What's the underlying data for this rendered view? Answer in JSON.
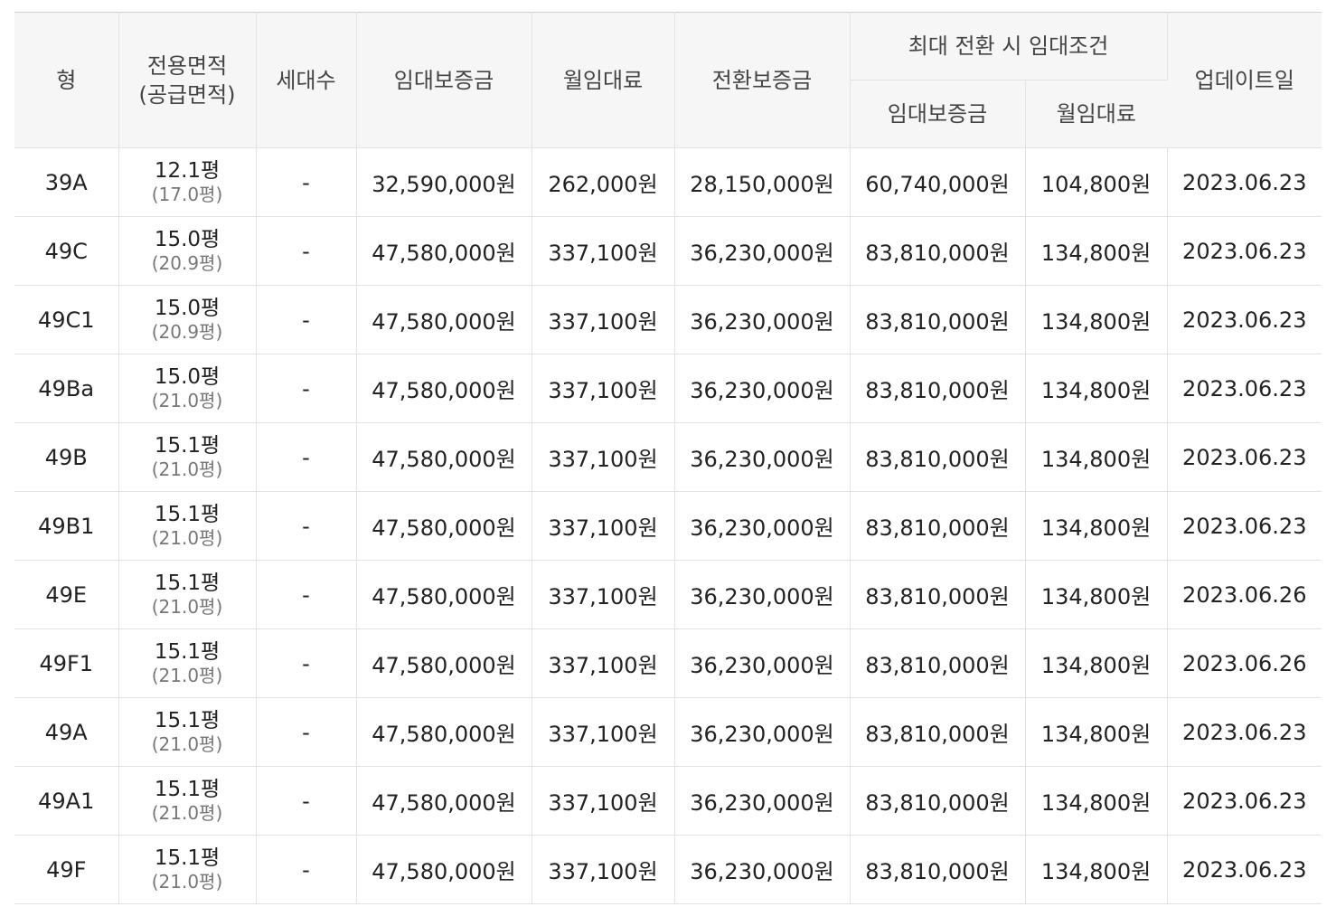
{
  "table": {
    "headers": {
      "type": "형",
      "area_line1": "전용면적",
      "area_line2": "(공급면적)",
      "households": "세대수",
      "deposit": "임대보증금",
      "monthly": "월임대료",
      "conversion_deposit": "전환보증금",
      "max_conversion_group": "최대 전환 시 임대조건",
      "max_deposit": "임대보증금",
      "max_monthly": "월임대료",
      "updated": "업데이트일"
    },
    "rows": [
      {
        "type": "39A",
        "area": "12.1평",
        "supply": "(17.0평)",
        "households": "-",
        "deposit": "32,590,000원",
        "monthly": "262,000원",
        "conversion": "28,150,000원",
        "max_deposit": "60,740,000원",
        "max_monthly": "104,800원",
        "updated": "2023.06.23"
      },
      {
        "type": "49C",
        "area": "15.0평",
        "supply": "(20.9평)",
        "households": "-",
        "deposit": "47,580,000원",
        "monthly": "337,100원",
        "conversion": "36,230,000원",
        "max_deposit": "83,810,000원",
        "max_monthly": "134,800원",
        "updated": "2023.06.23"
      },
      {
        "type": "49C1",
        "area": "15.0평",
        "supply": "(20.9평)",
        "households": "-",
        "deposit": "47,580,000원",
        "monthly": "337,100원",
        "conversion": "36,230,000원",
        "max_deposit": "83,810,000원",
        "max_monthly": "134,800원",
        "updated": "2023.06.23"
      },
      {
        "type": "49Ba",
        "area": "15.0평",
        "supply": "(21.0평)",
        "households": "-",
        "deposit": "47,580,000원",
        "monthly": "337,100원",
        "conversion": "36,230,000원",
        "max_deposit": "83,810,000원",
        "max_monthly": "134,800원",
        "updated": "2023.06.23"
      },
      {
        "type": "49B",
        "area": "15.1평",
        "supply": "(21.0평)",
        "households": "-",
        "deposit": "47,580,000원",
        "monthly": "337,100원",
        "conversion": "36,230,000원",
        "max_deposit": "83,810,000원",
        "max_monthly": "134,800원",
        "updated": "2023.06.23"
      },
      {
        "type": "49B1",
        "area": "15.1평",
        "supply": "(21.0평)",
        "households": "-",
        "deposit": "47,580,000원",
        "monthly": "337,100원",
        "conversion": "36,230,000원",
        "max_deposit": "83,810,000원",
        "max_monthly": "134,800원",
        "updated": "2023.06.23"
      },
      {
        "type": "49E",
        "area": "15.1평",
        "supply": "(21.0평)",
        "households": "-",
        "deposit": "47,580,000원",
        "monthly": "337,100원",
        "conversion": "36,230,000원",
        "max_deposit": "83,810,000원",
        "max_monthly": "134,800원",
        "updated": "2023.06.26"
      },
      {
        "type": "49F1",
        "area": "15.1평",
        "supply": "(21.0평)",
        "households": "-",
        "deposit": "47,580,000원",
        "monthly": "337,100원",
        "conversion": "36,230,000원",
        "max_deposit": "83,810,000원",
        "max_monthly": "134,800원",
        "updated": "2023.06.26"
      },
      {
        "type": "49A",
        "area": "15.1평",
        "supply": "(21.0평)",
        "households": "-",
        "deposit": "47,580,000원",
        "monthly": "337,100원",
        "conversion": "36,230,000원",
        "max_deposit": "83,810,000원",
        "max_monthly": "134,800원",
        "updated": "2023.06.23"
      },
      {
        "type": "49A1",
        "area": "15.1평",
        "supply": "(21.0평)",
        "households": "-",
        "deposit": "47,580,000원",
        "monthly": "337,100원",
        "conversion": "36,230,000원",
        "max_deposit": "83,810,000원",
        "max_monthly": "134,800원",
        "updated": "2023.06.23"
      },
      {
        "type": "49F",
        "area": "15.1평",
        "supply": "(21.0평)",
        "households": "-",
        "deposit": "47,580,000원",
        "monthly": "337,100원",
        "conversion": "36,230,000원",
        "max_deposit": "83,810,000원",
        "max_monthly": "134,800원",
        "updated": "2023.06.23"
      }
    ]
  }
}
